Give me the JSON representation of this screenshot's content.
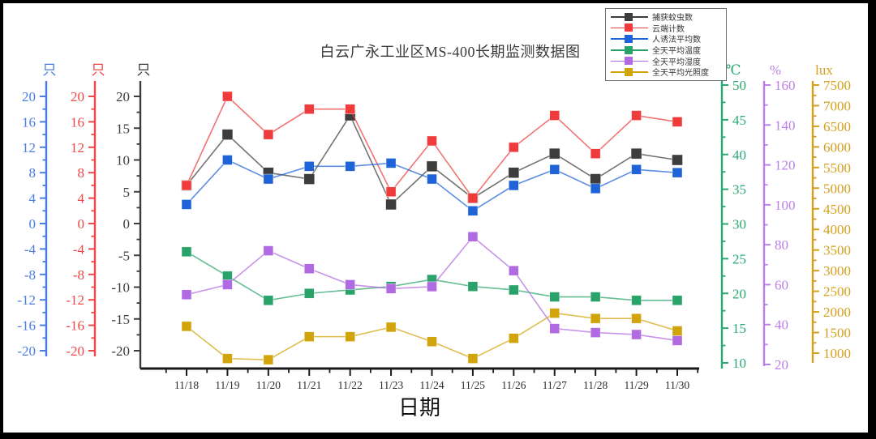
{
  "frame": {
    "background": "#ffffff",
    "border_color": "#000000"
  },
  "chart_data": {
    "type": "line",
    "title": "白云广永工业区MS-400长期监测数据图",
    "xlabel": "日期",
    "legend_position": "top-right",
    "grid": false,
    "categories": [
      "11/18",
      "11/19",
      "11/20",
      "11/21",
      "11/22",
      "11/23",
      "11/24",
      "11/25",
      "11/26",
      "11/27",
      "11/28",
      "11/29",
      "11/30"
    ],
    "series": [
      {
        "name": "捕获蚊虫数",
        "color": "#3d3d3d",
        "axis": "count_black",
        "unit": "只",
        "values": [
          6,
          14,
          8,
          7,
          17,
          3,
          9,
          4,
          8,
          11,
          7,
          11,
          10
        ]
      },
      {
        "name": "云端计数",
        "color": "#ef3b3b",
        "axis": "count_red",
        "unit": "只",
        "values": [
          6,
          20,
          14,
          18,
          18,
          5,
          13,
          4,
          12,
          17,
          11,
          17,
          16
        ]
      },
      {
        "name": "人诱法平均数",
        "color": "#1e63d8",
        "axis": "count_blue",
        "unit": "只",
        "values": [
          3,
          10,
          7,
          9,
          9,
          9.5,
          7,
          2,
          6,
          8.5,
          5.5,
          8.5,
          8
        ]
      },
      {
        "name": "全天平均温度",
        "color": "#29a36a",
        "axis": "temp",
        "unit": "℃",
        "values": [
          26,
          22.5,
          19,
          20,
          20.5,
          21,
          22,
          21,
          20.5,
          19.5,
          19.5,
          19,
          19
        ]
      },
      {
        "name": "全天平均湿度",
        "color": "#b06ae2",
        "axis": "humidity",
        "unit": "%",
        "values": [
          55,
          60,
          77,
          68,
          60,
          58,
          59,
          84,
          67,
          38,
          36,
          35,
          32
        ]
      },
      {
        "name": "全天平均光照度",
        "color": "#d2a40b",
        "axis": "lux",
        "unit": "lux",
        "values": [
          1650,
          870,
          840,
          1400,
          1400,
          1630,
          1280,
          870,
          1360,
          1970,
          1840,
          1840,
          1540
        ]
      }
    ],
    "axes": {
      "left": [
        {
          "id": "count_blue",
          "unit": "只",
          "color": "#4a7de2",
          "min": -20,
          "max": 20,
          "tick_step": 4,
          "minor_step": 2,
          "labels": [
            20,
            16,
            12,
            8,
            4,
            0,
            -4,
            -8,
            -12,
            -16,
            -20
          ]
        },
        {
          "id": "count_red",
          "unit": "只",
          "color": "#f04848",
          "min": -20,
          "max": 20,
          "tick_step": 4,
          "minor_step": 2,
          "labels": [
            20,
            16,
            12,
            8,
            4,
            0,
            -4,
            -8,
            -12,
            -16,
            -20
          ]
        },
        {
          "id": "count_black",
          "unit": "只",
          "color": "#3d3d3d",
          "min": -20,
          "max": 20,
          "tick_step": 5,
          "minor_step": 2.5,
          "labels": [
            20,
            15,
            10,
            5,
            0,
            -5,
            -10,
            -15,
            -20
          ]
        }
      ],
      "right": [
        {
          "id": "temp",
          "unit": "℃",
          "color": "#2aa871",
          "min": 10,
          "max": 50,
          "tick_step": 5,
          "minor_step": 2.5,
          "labels": [
            50,
            45,
            40,
            35,
            30,
            25,
            20,
            15,
            10
          ]
        },
        {
          "id": "humidity",
          "unit": "%",
          "color": "#bd7ee8",
          "min": 20,
          "max": 160,
          "tick_step": 20,
          "minor_step": 10,
          "labels": [
            160,
            140,
            120,
            100,
            80,
            60,
            40,
            20
          ]
        },
        {
          "id": "lux",
          "unit": "lux",
          "color": "#d4a01d",
          "min": 1000,
          "max": 7500,
          "tick_step": 500,
          "minor_step": 250,
          "labels": [
            7500,
            7000,
            6500,
            6000,
            5500,
            5000,
            4500,
            4000,
            3500,
            3000,
            2500,
            2000,
            1500,
            1000
          ]
        }
      ]
    },
    "legend": {
      "entries": [
        "捕获蚊虫数",
        "云端计数",
        "人诱法平均数",
        "全天平均温度",
        "全天平均湿度",
        "全天平均光照度"
      ]
    }
  }
}
